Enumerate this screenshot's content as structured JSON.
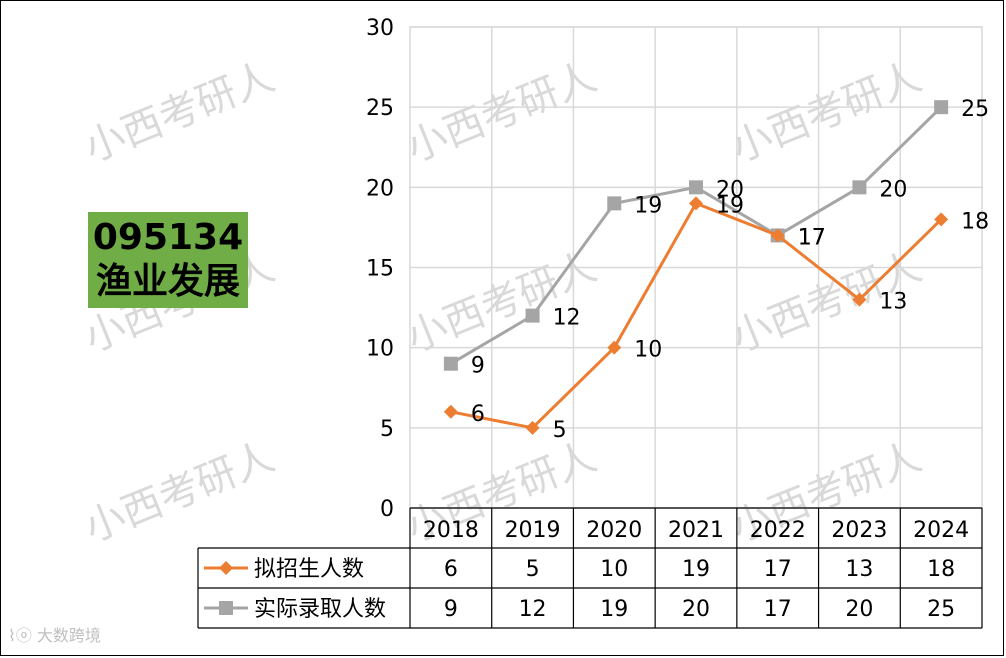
{
  "badge": {
    "code": "095134",
    "name": "渔业发展",
    "color": "#70ad47"
  },
  "watermark": "小西考研人",
  "corner_mark": "⌇ⓞ 大数跨境",
  "chart_data": {
    "type": "line",
    "categories": [
      "2018",
      "2019",
      "2020",
      "2021",
      "2022",
      "2023",
      "2024"
    ],
    "series": [
      {
        "name": "拟招生人数",
        "values": [
          6,
          5,
          10,
          19,
          17,
          13,
          18
        ],
        "color": "#ed7d31",
        "marker": "diamond"
      },
      {
        "name": "实际录取人数",
        "values": [
          9,
          12,
          19,
          20,
          17,
          20,
          25
        ],
        "color": "#a5a5a5",
        "marker": "square"
      }
    ],
    "ylim": [
      0,
      30
    ],
    "yticks": [
      0,
      5,
      10,
      15,
      20,
      25,
      30
    ],
    "grid": true,
    "data_table": true
  }
}
